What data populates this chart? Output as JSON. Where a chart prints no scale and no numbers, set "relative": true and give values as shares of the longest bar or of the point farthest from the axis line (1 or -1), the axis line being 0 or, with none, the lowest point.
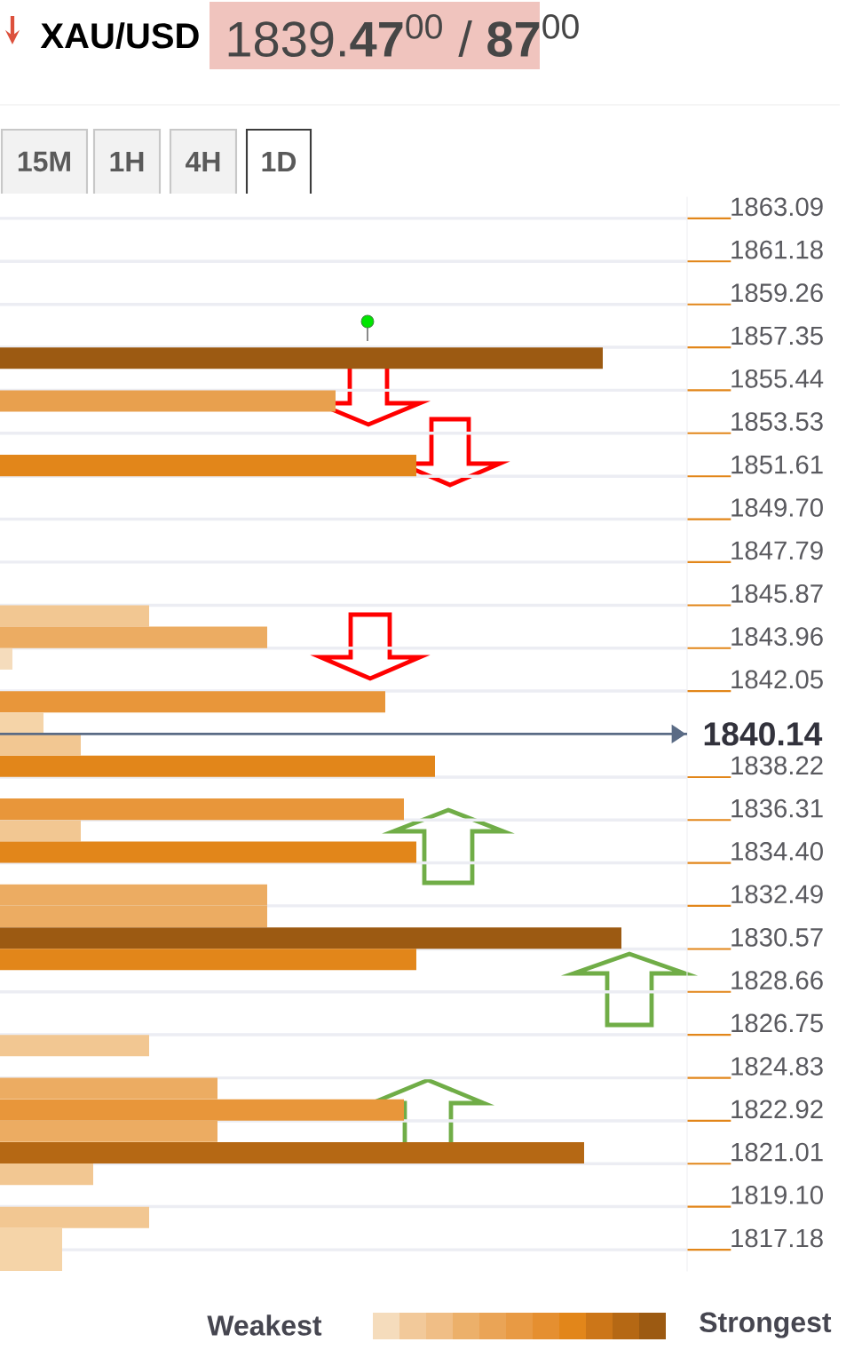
{
  "chart_data": {
    "type": "bar",
    "orientation": "horizontal",
    "relative": true,
    "title": "XAU/USD",
    "subtitle": "1839.**47**$^{00}$ / **87**$^{00}$",
    "annotations": [
      "15M",
      "1H",
      "4H",
      "1D",
      "Weakest",
      "Strongest"
    ],
    "x": [
      1856.87,
      1854.96,
      1852.09,
      1845.39,
      1844.44,
      1843.48,
      1841.57,
      1840.61,
      1839.66,
      1838.7,
      1836.79,
      1835.83,
      1834.88,
      1832.97,
      1832.01,
      1831.05,
      1830.1,
      1826.27,
      1824.36,
      1823.4,
      1822.45,
      1821.49,
      1820.54,
      1818.62,
      1817.66,
      1816.71
    ],
    "values": [
      0.97,
      0.54,
      0.67,
      0.24,
      0.43,
      0.02,
      0.62,
      0.07,
      0.13,
      0.7,
      0.65,
      0.13,
      0.67,
      0.43,
      0.43,
      1,
      0.67,
      0.24,
      0.35,
      0.65,
      0.35,
      0.94,
      0.15,
      0.24,
      0.1,
      0.1
    ],
    "colors": [
      "#9c5a12",
      "#e8a04e",
      "#e2861a",
      "#f2c792",
      "#ecac62",
      "#f5dcbc",
      "#e8963a",
      "#f5d4a8",
      "#f2c792",
      "#e2861a",
      "#e8963a",
      "#f2c792",
      "#e2861a",
      "#ecac62",
      "#ecac62",
      "#9c5a12",
      "#e2861a",
      "#f2c792",
      "#ecac62",
      "#e8963a",
      "#ecac62",
      "#b56814",
      "#f2c792",
      "#f2c792",
      "#f5d4a8",
      "#f5d4a8"
    ],
    "ylim": [
      1816.22,
      1864.05
    ],
    "yticks": [
      1863.09,
      1861.18,
      1859.26,
      1857.35,
      1855.44,
      1853.53,
      1851.61,
      {
        "value": 1849.7,
        "label": "1849.70"
      },
      1847.79,
      1845.87,
      1843.96,
      1842.05,
      1838.22,
      1836.31,
      {
        "value": 1834.4,
        "label": "1834.40"
      },
      1832.49,
      1830.57,
      1828.66,
      1826.75,
      1824.83,
      1822.92,
      1821.01,
      {
        "value": 1819.1,
        "label": "1819.10"
      },
      1817.18
    ],
    "ref_lines": [
      {
        "axis": "y",
        "value": 1840.14,
        "label": "1840.14",
        "color": "#5a6b85"
      }
    ],
    "grid": "y"
  }
}
